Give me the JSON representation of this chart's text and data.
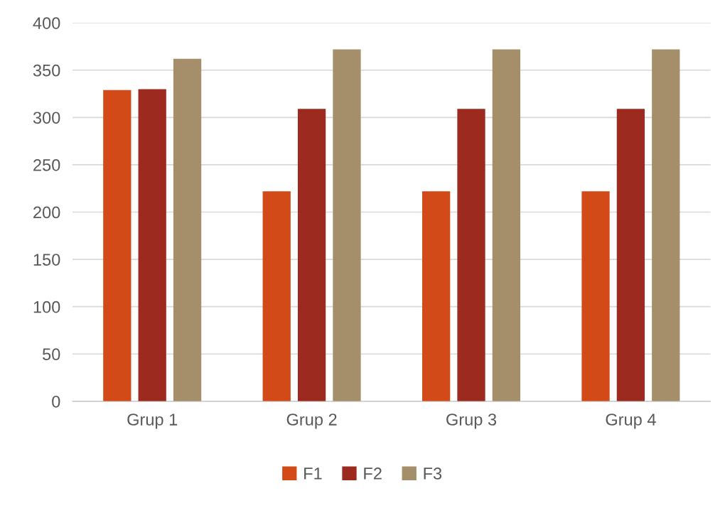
{
  "chart_data": {
    "type": "bar",
    "categories": [
      "Grup 1",
      "Grup 2",
      "Grup 3",
      "Grup 4"
    ],
    "series": [
      {
        "name": "F1",
        "color": "#d24a17",
        "values": [
          329,
          222,
          222,
          222
        ]
      },
      {
        "name": "F2",
        "color": "#9c2a1e",
        "values": [
          330,
          309,
          309,
          309
        ]
      },
      {
        "name": "F3",
        "color": "#a58e6a",
        "values": [
          362,
          372,
          372,
          372
        ]
      }
    ],
    "ylim": [
      0,
      400
    ],
    "yticks": [
      0,
      50,
      100,
      150,
      200,
      250,
      300,
      350,
      400
    ],
    "grid": "y",
    "legend": "bottom"
  }
}
